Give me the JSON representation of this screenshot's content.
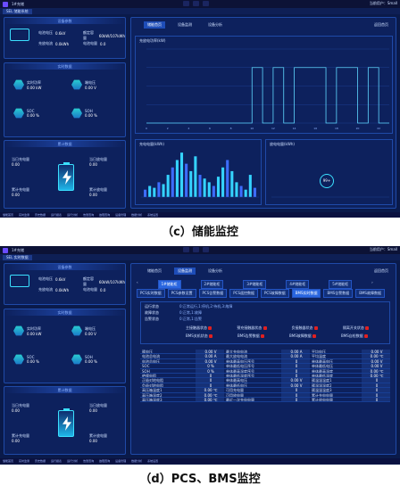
{
  "titlebar": {
    "app_name": "1#充储",
    "right_text": "当前用户：Small"
  },
  "screen1": {
    "tab_label": "SEL 储能系统",
    "left": {
      "device_params_title": "设备参数",
      "params": [
        {
          "label": "电池电压",
          "value": "0.6kV"
        },
        {
          "label": "额定容量",
          "value": "60kW/107kWh"
        },
        {
          "label": "充放电流",
          "value": "0.0kWh"
        },
        {
          "label": "电池电量",
          "value": "0.0"
        }
      ],
      "realtime_title": "实时数据",
      "realtime": [
        {
          "label": "实时功率",
          "value": "0.00 kW"
        },
        {
          "label": "端电压",
          "value": "0.00 V"
        },
        {
          "label": "SOC",
          "value": "0.00 %"
        },
        {
          "label": "SOH",
          "value": "0.00 %"
        }
      ],
      "accum_title": "累计数据",
      "accum": [
        {
          "label": "当日充电量",
          "value": "0.00"
        },
        {
          "label": "当日放电量",
          "value": "0.00"
        },
        {
          "label": "累计充电量",
          "value": "0.00"
        },
        {
          "label": "累计放电量",
          "value": "0.00"
        }
      ]
    },
    "nav": [
      "储能首页",
      "设备监测",
      "设备分析"
    ],
    "nav_right": "返回首页",
    "chart1_title": "充放电功率(kW)",
    "chart2_title": "充电电量(kWh)",
    "chart3_title": "放电电量(kWh)",
    "gauge_value": "99+"
  },
  "screen2": {
    "tab_label": "SEL 实时数据",
    "nav": [
      "储能首页",
      "设备监测",
      "设备分析"
    ],
    "pcs_tabs": [
      "1#储能柜",
      "2#储能柜",
      "3#储能柜",
      "4#储能柜",
      "5#储能柜"
    ],
    "sub_tabs": [
      "PCS实时数据",
      "PCS参数设置",
      "PCS告警数据",
      "PCS遥控数据",
      "PCS故障数据",
      "BMS实时数据",
      "BMS告警数据",
      "BMS故障数据"
    ],
    "status_rows": [
      {
        "label": "运行状态",
        "value": "0:正常运行,1:停机,2:待机,3:故障"
      },
      {
        "label": "故障状态",
        "value": "0:正常,1:故障"
      },
      {
        "label": "告警状态",
        "value": "0:正常,1:告警"
      }
    ],
    "indicator_labels": [
      "主接触器状态",
      "预充接触器状态",
      "负接触器状态",
      "隔离开关状态",
      "BMS关机状态",
      "BMS告警数据",
      "BMS故障数据",
      "BMS自检数据"
    ],
    "table": [
      [
        "簇电压",
        "0.00 V",
        "最大充电电流",
        "0.00 A",
        "平均电压",
        "0.00 V"
      ],
      [
        "电池总电流",
        "0.00 A",
        "最大放电电流",
        "0.00 A",
        "平均温度",
        "0.00 ℃"
      ],
      [
        "电池总电压",
        "0.00 V",
        "单体最高电压序号",
        "0",
        "单体最高电压",
        "0.00 V"
      ],
      [
        "SOC",
        "0 %",
        "单体最低电压序号",
        "0",
        "单体最低电压",
        "0.00 V"
      ],
      [
        "SOH",
        "0 %",
        "单体最高温度序号",
        "0",
        "单体最高温度",
        "0.00 ℃"
      ],
      [
        "绝缘电阻",
        "0",
        "单体最低温度序号",
        "0",
        "单体最低温度",
        "0.00 ℃"
      ],
      [
        "正极对地电阻",
        "0",
        "单体最高电压",
        "0.00 V",
        "簇温湿温度1",
        "0"
      ],
      [
        "负极对地电阻",
        "0",
        "单体最低电压",
        "0.00 V",
        "簇温湿温度2",
        "0"
      ],
      [
        "高压箱温度1",
        "0.00 ℃",
        "可用充电量",
        "0",
        "簇温湿温度3",
        "0"
      ],
      [
        "高压箱温度2",
        "0.00 ℃",
        "可用放电量",
        "0",
        "累计充电电量",
        "0"
      ],
      [
        "高压箱温度3",
        "0.00 ℃",
        "最近一次充电电量",
        "0",
        "累计放电电量",
        "0"
      ]
    ],
    "left_params": [
      {
        "label": "电池电压",
        "value": "0.6kV"
      },
      {
        "label": "额定容量",
        "value": "60kW/107kWh"
      },
      {
        "label": "充放电流",
        "value": "0.0kWh"
      },
      {
        "label": "电池电量",
        "value": "0.0"
      }
    ],
    "left_realtime": [
      {
        "label": "实时功率",
        "value": "0.00 kW"
      },
      {
        "label": "端电压",
        "value": "0.00 V"
      },
      {
        "label": "SOC",
        "value": "0.00 %"
      },
      {
        "label": "SOH",
        "value": "0.00 %"
      }
    ],
    "left_accum": [
      {
        "label": "当日充电量",
        "value": "0.00"
      },
      {
        "label": "当日放电量",
        "value": "0.00"
      },
      {
        "label": "累计充电量",
        "value": "0.00"
      },
      {
        "label": "累计放电量",
        "value": "0.00"
      }
    ]
  },
  "captions": {
    "c1": "（c）储能监控",
    "c2": "（d）PCS、BMS监控"
  },
  "taskbar": [
    "储能首页",
    "实时监测",
    "历史数据",
    "运行报表",
    "运行分析",
    "告警查询",
    "故障查询",
    "设备管理",
    "数据分析",
    "系统设置",
    "用户管理",
    "权限管理",
    "日志查询"
  ],
  "chart_data": [
    {
      "type": "line",
      "title": "充放电功率(kW)",
      "x": [
        0,
        1,
        2,
        3,
        4,
        5,
        6,
        7,
        8,
        9,
        10,
        11,
        12,
        13,
        14,
        15,
        16,
        17,
        18,
        19,
        20,
        21,
        22,
        23
      ],
      "series": [
        {
          "values": [
            0,
            0,
            0,
            0,
            0,
            0,
            0,
            0,
            0,
            0,
            60,
            0,
            60,
            0,
            60,
            60,
            60,
            0,
            60,
            60,
            0,
            60,
            0,
            0
          ]
        }
      ]
    },
    {
      "type": "bar",
      "title": "充电电量(kWh)",
      "categories": [
        "1",
        "2",
        "3",
        "4",
        "5",
        "6",
        "7",
        "8",
        "9",
        "10",
        "11",
        "12",
        "13",
        "14",
        "15",
        "16",
        "17",
        "18",
        "19",
        "20",
        "21",
        "22",
        "23",
        "24",
        "25"
      ],
      "series": [
        {
          "values": [
            20,
            30,
            25,
            40,
            35,
            60,
            80,
            100,
            120,
            90,
            70,
            110,
            60,
            50,
            40,
            30,
            55,
            80,
            100,
            70,
            40,
            30,
            20,
            60,
            25
          ]
        }
      ]
    },
    {
      "type": "bar",
      "title": "放电电量(kWh)",
      "categories": [
        "1",
        "2",
        "3",
        "4",
        "5",
        "6",
        "7",
        "8",
        "9",
        "10",
        "11",
        "12",
        "13",
        "14",
        "15",
        "16",
        "17",
        "18",
        "19",
        "20",
        "21",
        "22",
        "23",
        "24",
        "25"
      ],
      "series": [
        {
          "values": [
            0,
            0,
            0,
            0,
            0,
            0,
            0,
            0,
            0,
            0,
            0,
            0,
            0,
            0,
            0,
            0,
            0,
            0,
            0,
            0,
            0,
            0,
            0,
            0,
            0
          ]
        }
      ]
    }
  ]
}
